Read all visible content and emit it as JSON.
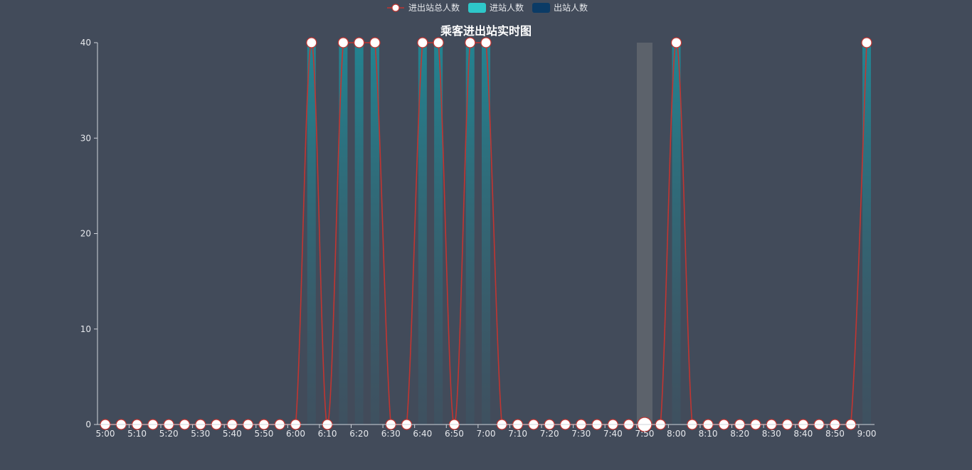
{
  "chart_data": {
    "type": "bar",
    "title": "乘客进出站实时图",
    "legend": {
      "placement": "top-center",
      "items": [
        {
          "name": "进出站总人数",
          "kind": "line",
          "color": "#c23531"
        },
        {
          "name": "进站人数",
          "kind": "bar",
          "color": "#2ec7c9"
        },
        {
          "name": "出站人数",
          "kind": "bar",
          "color": "#0b3b66"
        }
      ]
    },
    "ylim": [
      0,
      40
    ],
    "yticks": [
      "0",
      "10",
      "20",
      "30",
      "40"
    ],
    "xticks": [
      "5:00",
      "5:10",
      "5:20",
      "5:30",
      "5:40",
      "5:50",
      "6:00",
      "6:10",
      "6:20",
      "6:30",
      "6:40",
      "6:50",
      "7:00",
      "7:10",
      "7:20",
      "7:30",
      "7:40",
      "7:50",
      "8:00",
      "8:10",
      "8:20",
      "8:30",
      "8:40",
      "8:50",
      "9:00"
    ],
    "categories": [
      "5:00",
      "5:05",
      "5:10",
      "5:15",
      "5:20",
      "5:25",
      "5:30",
      "5:35",
      "5:40",
      "5:45",
      "5:50",
      "5:55",
      "6:00",
      "6:05",
      "6:10",
      "6:15",
      "6:20",
      "6:25",
      "6:30",
      "6:35",
      "6:40",
      "6:45",
      "6:50",
      "6:55",
      "7:00",
      "7:05",
      "7:10",
      "7:15",
      "7:20",
      "7:25",
      "7:30",
      "7:35",
      "7:40",
      "7:45",
      "7:50",
      "7:55",
      "8:00",
      "8:05",
      "8:10",
      "8:15",
      "8:20",
      "8:25",
      "8:30",
      "8:35",
      "8:40",
      "8:45",
      "8:50",
      "8:55",
      "9:00"
    ],
    "series": [
      {
        "name": "进出站总人数",
        "type": "line",
        "values": [
          0,
          0,
          0,
          0,
          0,
          0,
          0,
          0,
          0,
          0,
          0,
          0,
          0,
          40,
          0,
          40,
          40,
          40,
          0,
          0,
          40,
          40,
          0,
          40,
          40,
          0,
          0,
          0,
          0,
          0,
          0,
          0,
          0,
          0,
          0,
          0,
          40,
          0,
          0,
          0,
          0,
          0,
          0,
          0,
          0,
          0,
          0,
          0,
          40
        ]
      },
      {
        "name": "进站人数",
        "type": "bar",
        "values": [
          0,
          0,
          0,
          0,
          0,
          0,
          0,
          0,
          0,
          0,
          0,
          0,
          0,
          40,
          0,
          40,
          40,
          40,
          0,
          0,
          40,
          40,
          0,
          40,
          40,
          0,
          0,
          0,
          0,
          0,
          0,
          0,
          0,
          0,
          0,
          0,
          40,
          0,
          0,
          0,
          0,
          0,
          0,
          0,
          0,
          0,
          0,
          0,
          40
        ]
      },
      {
        "name": "出站人数",
        "type": "bar",
        "values": [
          0,
          0,
          0,
          0,
          0,
          0,
          0,
          0,
          0,
          0,
          0,
          0,
          0,
          0,
          0,
          0,
          0,
          0,
          0,
          0,
          0,
          0,
          0,
          0,
          0,
          0,
          0,
          0,
          0,
          0,
          0,
          0,
          0,
          0,
          0,
          0,
          0,
          0,
          0,
          0,
          0,
          0,
          0,
          0,
          0,
          0,
          0,
          0,
          0
        ]
      }
    ],
    "highlight_category": "7:50",
    "colors": {
      "background": "#424b5a",
      "line": "#c23531",
      "bar_in": "#2ec7c9",
      "bar_out": "#0b3b66",
      "axis": "#cfd3da",
      "text": "#e6e8ec",
      "highlight": "#5c626b"
    }
  }
}
